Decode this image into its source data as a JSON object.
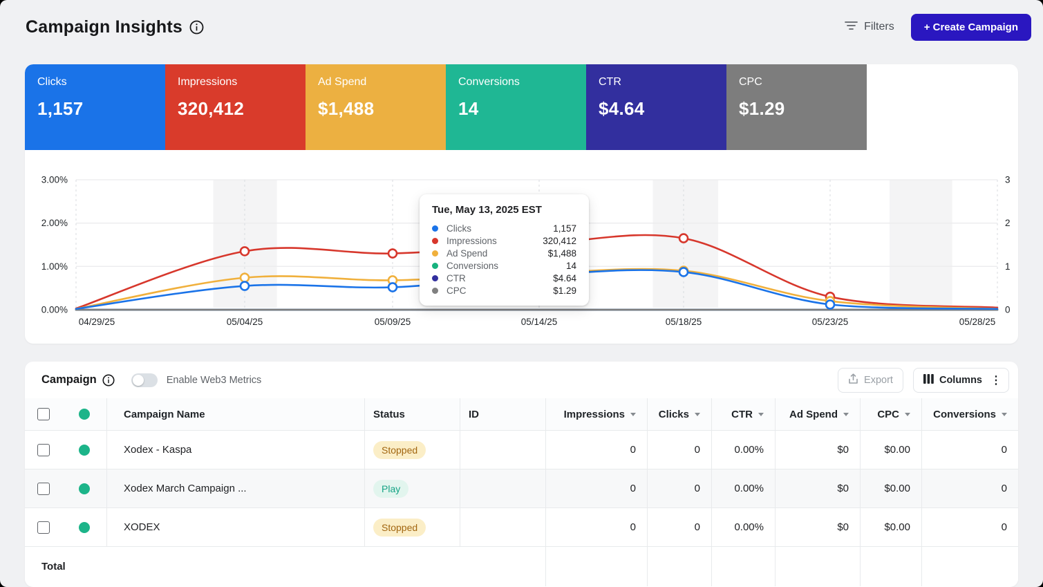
{
  "header": {
    "title": "Campaign Insights",
    "filters_label": "Filters",
    "create_campaign_label": "+ Create Campaign"
  },
  "metric_cards": [
    {
      "label": "Clicks",
      "value": "1,157",
      "color": "#1a73e8"
    },
    {
      "label": "Impressions",
      "value": "320,412",
      "color": "#d93b2b"
    },
    {
      "label": "Ad Spend",
      "value": "$1,488",
      "color": "#ecb041"
    },
    {
      "label": "Conversions",
      "value": "14",
      "color": "#1fb794"
    },
    {
      "label": "CTR",
      "value": "$4.64",
      "color": "#322f9e"
    },
    {
      "label": "CPC",
      "value": "$1.29",
      "color": "#7d7d7d"
    }
  ],
  "chart_data": {
    "type": "line",
    "x": [
      "04/29/25",
      "05/04/25",
      "05/09/25",
      "05/14/25",
      "05/18/25",
      "05/23/25",
      "05/28/25"
    ],
    "y_axis_left": {
      "tick_labels": [
        "0.00%",
        "1.00%",
        "2.00%",
        "3.00%"
      ],
      "range": [
        0,
        3
      ]
    },
    "y_axis_right": {
      "tick_labels": [
        "0",
        "1",
        "2",
        "3"
      ],
      "range": [
        0,
        3
      ]
    },
    "grid": true,
    "legend_position": "tooltip",
    "shaded_bands": [
      [
        0.149,
        0.218
      ],
      [
        0.626,
        0.697
      ],
      [
        0.883,
        0.951
      ]
    ],
    "series": [
      {
        "name": "Conversions",
        "color": "#1fb794",
        "values": [
          0,
          0,
          0,
          0,
          0,
          0,
          0
        ],
        "markers": []
      },
      {
        "name": "CTR",
        "color": "#322f9e",
        "values": [
          0,
          0,
          0,
          0,
          0,
          0,
          0
        ],
        "markers": []
      },
      {
        "name": "CPC",
        "color": "#7d7d7d",
        "values": [
          0,
          0,
          0,
          0,
          0,
          0,
          0
        ],
        "markers": []
      },
      {
        "name": "Impressions",
        "color": "#d7372c",
        "values": [
          0.03,
          1.35,
          1.3,
          1.52,
          1.65,
          0.3,
          0.05
        ],
        "markers": [
          1,
          2,
          4,
          5
        ]
      },
      {
        "name": "Ad Spend",
        "color": "#f0b03c",
        "values": [
          0.02,
          0.74,
          0.68,
          0.84,
          0.9,
          0.2,
          0.02
        ],
        "markers": [
          1,
          2,
          4,
          5
        ]
      },
      {
        "name": "Clicks",
        "color": "#1a73e8",
        "values": [
          0.02,
          0.55,
          0.52,
          0.8,
          0.87,
          0.12,
          0.02
        ],
        "markers": [
          1,
          2,
          4,
          5
        ]
      }
    ]
  },
  "tooltip": {
    "title": "Tue, May 13, 2025 EST",
    "rows": [
      {
        "label": "Clicks",
        "value": "1,157",
        "color": "#1a73e8"
      },
      {
        "label": "Impressions",
        "value": "320,412",
        "color": "#d7372c"
      },
      {
        "label": "Ad Spend",
        "value": "$1,488",
        "color": "#f0b03c"
      },
      {
        "label": "Conversions",
        "value": "14",
        "color": "#17b27e"
      },
      {
        "label": "CTR",
        "value": "$4.64",
        "color": "#322f9e"
      },
      {
        "label": "CPC",
        "value": "$1.29",
        "color": "#808080"
      }
    ]
  },
  "table": {
    "section_title": "Campaign",
    "toggle_label": "Enable Web3 Metrics",
    "toggle_state": "off",
    "export_label": "Export",
    "columns_label": "Columns",
    "text_columns": [
      "Campaign Name",
      "Status",
      "ID"
    ],
    "numeric_columns": [
      "Impressions",
      "Clicks",
      "CTR",
      "Ad Spend",
      "CPC",
      "Conversions"
    ],
    "rows": [
      {
        "name": "Xodex - Kaspa",
        "status": "Stopped",
        "status_type": "stopped",
        "id": "",
        "impressions": "0",
        "clicks": "0",
        "ctr": "0.00%",
        "ad_spend": "$0",
        "cpc": "$0.00",
        "conversions": "0"
      },
      {
        "name": "Xodex March Campaign ...",
        "status": "Play",
        "status_type": "play",
        "id": "",
        "impressions": "0",
        "clicks": "0",
        "ctr": "0.00%",
        "ad_spend": "$0",
        "cpc": "$0.00",
        "conversions": "0"
      },
      {
        "name": "XODEX",
        "status": "Stopped",
        "status_type": "stopped",
        "id": "",
        "impressions": "0",
        "clicks": "0",
        "ctr": "0.00%",
        "ad_spend": "$0",
        "cpc": "$0.00",
        "conversions": "0"
      }
    ],
    "total_label": "Total"
  }
}
